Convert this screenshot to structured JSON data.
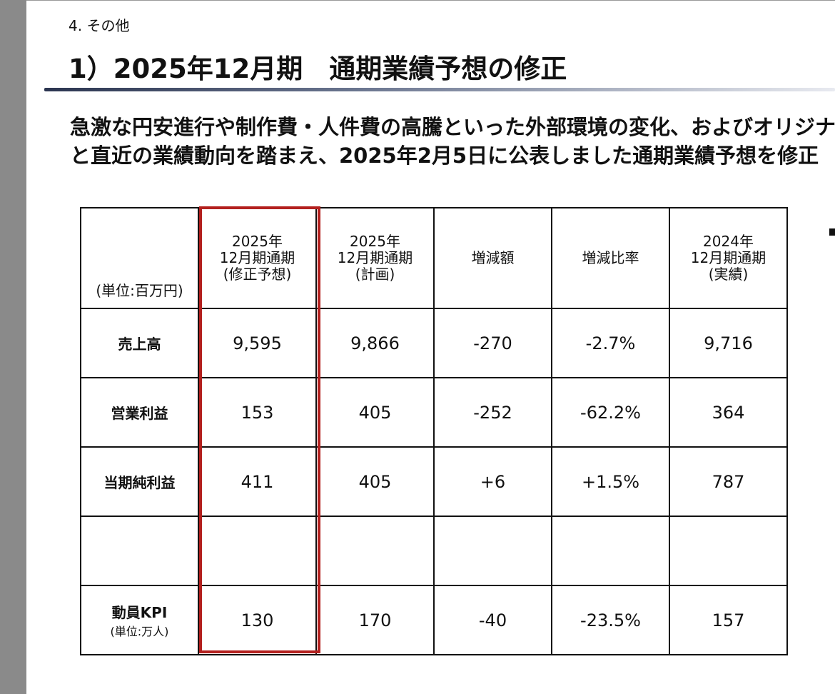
{
  "section": "4. その他",
  "title": "1）2025年12月期　通期業績予想の修正",
  "body": [
    "急激な円安進行や制作費・人件費の高騰といった外部環境の変化、およびオリジナ",
    "と直近の業績動向を踏まえ、2025年2月5日に公表しました通期業績予想を修正"
  ],
  "table": {
    "unit": "(単位:百万円)",
    "headers": [
      [
        "2025年",
        "12月期通期",
        "(修正予想)"
      ],
      [
        "2025年",
        "12月期通期",
        "(計画)"
      ],
      [
        "増減額"
      ],
      [
        "増減比率"
      ],
      [
        "2024年",
        "12月期通期",
        "(実績)"
      ]
    ],
    "rows": [
      {
        "label": "売上高",
        "cells": [
          "9,595",
          "9,866",
          "-270",
          "-2.7%",
          "9,716"
        ]
      },
      {
        "label": "営業利益",
        "cells": [
          "153",
          "405",
          "-252",
          "-62.2%",
          "364"
        ]
      },
      {
        "label": "当期純利益",
        "cells": [
          "411",
          "405",
          "+6",
          "+1.5%",
          "787"
        ]
      },
      {
        "label": null,
        "cells": [
          null,
          null,
          null,
          null,
          null
        ]
      },
      {
        "label": "動員KPI",
        "sublabel": "(単位:万人)",
        "cells": [
          "130",
          "170",
          "-40",
          "-23.5%",
          "157"
        ]
      }
    ]
  }
}
